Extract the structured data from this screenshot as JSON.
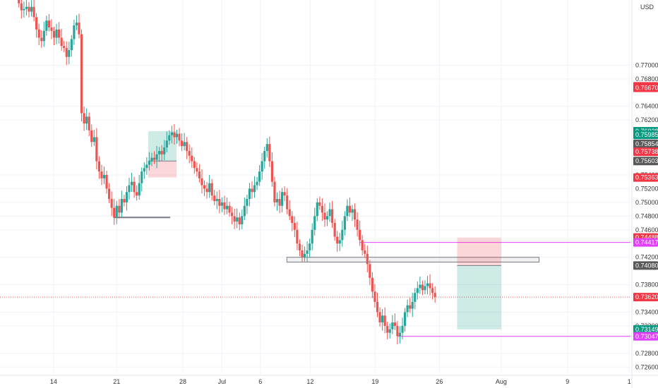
{
  "currency_label": "USD",
  "colors": {
    "up": "#26a69a",
    "down": "#ef5350",
    "grid": "#f0f3fa",
    "magenta": "#e040fb",
    "gray_badge": "#595959",
    "green_badge": "#089981",
    "red_badge": "#f23645",
    "magenta_badge": "#e040fb",
    "current_badge": "#f23645",
    "zone_stroke": "#787b86"
  },
  "chart_data": {
    "type": "candlestick",
    "ylim": [
      0.725,
      0.7795
    ],
    "x_ticks": [
      "14",
      "21",
      "28",
      "Jul",
      "6",
      "12",
      "19",
      "26",
      "Aug",
      "9",
      "1"
    ],
    "y_ticks": [
      "0.77000",
      "0.76800",
      "0.76400",
      "0.76200",
      "0.75400",
      "0.75200",
      "0.75000",
      "0.74800",
      "0.74600",
      "0.74200",
      "0.73800",
      "0.73400",
      "0.73200",
      "0.72800",
      "0.72600"
    ],
    "price_badges": [
      {
        "label": "0.76692",
        "kind": "red"
      },
      {
        "label": "0.76670",
        "kind": "red"
      },
      {
        "label": "0.76038",
        "kind": "green"
      },
      {
        "label": "0.75985",
        "kind": "green"
      },
      {
        "label": "0.75854",
        "kind": "gray"
      },
      {
        "label": "0.75738",
        "kind": "red"
      },
      {
        "label": "0.75603",
        "kind": "gray"
      },
      {
        "label": "0.75363",
        "kind": "red"
      },
      {
        "label": "0.74488",
        "kind": "red"
      },
      {
        "label": "0.74417",
        "kind": "magenta"
      },
      {
        "label": "0.74080",
        "kind": "gray"
      },
      {
        "label": "0.73620",
        "kind": "current"
      },
      {
        "label": "0.73149",
        "kind": "green"
      },
      {
        "label": "0.73047",
        "kind": "magenta"
      }
    ],
    "series_close": [
      0.779,
      0.778,
      0.7782,
      0.7785,
      0.7778,
      0.7785,
      0.777,
      0.7752,
      0.774,
      0.7735,
      0.775,
      0.7765,
      0.7755,
      0.775,
      0.774,
      0.7752,
      0.774,
      0.7728,
      0.7725,
      0.7712,
      0.7722,
      0.7738,
      0.7758,
      0.7762,
      0.7745,
      0.763,
      0.7615,
      0.7625,
      0.7605,
      0.7588,
      0.7595,
      0.756,
      0.7545,
      0.7535,
      0.754,
      0.752,
      0.7505,
      0.7492,
      0.7478,
      0.7495,
      0.7485,
      0.7505,
      0.75,
      0.7515,
      0.7525,
      0.753,
      0.7515,
      0.751,
      0.7528,
      0.7545,
      0.755,
      0.7555,
      0.756,
      0.7565,
      0.7562,
      0.757,
      0.7575,
      0.757,
      0.758,
      0.759,
      0.7598,
      0.7602,
      0.7595,
      0.76,
      0.759,
      0.7582,
      0.7588,
      0.7575,
      0.7568,
      0.756,
      0.755,
      0.7545,
      0.7535,
      0.7525,
      0.752,
      0.7515,
      0.7528,
      0.751,
      0.7502,
      0.7505,
      0.7495,
      0.75,
      0.749,
      0.7495,
      0.7485,
      0.748,
      0.7472,
      0.7478,
      0.7468,
      0.748,
      0.7495,
      0.7505,
      0.752,
      0.7515,
      0.7525,
      0.753,
      0.7545,
      0.756,
      0.7575,
      0.7585,
      0.756,
      0.753,
      0.75,
      0.7505,
      0.7495,
      0.7515,
      0.751,
      0.749,
      0.748,
      0.747,
      0.746,
      0.744,
      0.743,
      0.742,
      0.7425,
      0.743,
      0.744,
      0.746,
      0.748,
      0.75,
      0.7495,
      0.7485,
      0.7475,
      0.748,
      0.749,
      0.747,
      0.745,
      0.744,
      0.7445,
      0.746,
      0.748,
      0.7495,
      0.7485,
      0.749,
      0.7475,
      0.746,
      0.7445,
      0.743,
      0.7425,
      0.741,
      0.739,
      0.737,
      0.7355,
      0.734,
      0.7325,
      0.7335,
      0.732,
      0.731,
      0.7315,
      0.7325,
      0.732,
      0.7305,
      0.731,
      0.732,
      0.734,
      0.735,
      0.7345,
      0.7355,
      0.7368,
      0.7375,
      0.738,
      0.7372,
      0.7378,
      0.7382,
      0.7375,
      0.7368,
      0.7362
    ],
    "annotations": [
      {
        "kind": "zone",
        "from": 0.7413,
        "to": 0.742,
        "x0": 0.455,
        "x1": 0.855
      },
      {
        "kind": "hline",
        "value": 0.74417,
        "x0": 0.57,
        "x1": 1.0
      },
      {
        "kind": "hline",
        "value": 0.73047,
        "x0": 0.63,
        "x1": 1.0
      },
      {
        "kind": "hline",
        "value": 0.7478,
        "x0": 0.18,
        "x1": 0.27
      },
      {
        "kind": "box",
        "from": 0.75854,
        "to": 0.7475,
        "x0": 0.22,
        "x1": 0.28,
        "fill": "red"
      }
    ],
    "positions": [
      {
        "entry": 0.7408,
        "stop": 0.74488,
        "target": 0.73149,
        "x0": 0.725,
        "x1": 0.795
      },
      {
        "entry": 0.75603,
        "stop": 0.75363,
        "target": 0.76038,
        "x0": 0.235,
        "x1": 0.28
      }
    ]
  }
}
